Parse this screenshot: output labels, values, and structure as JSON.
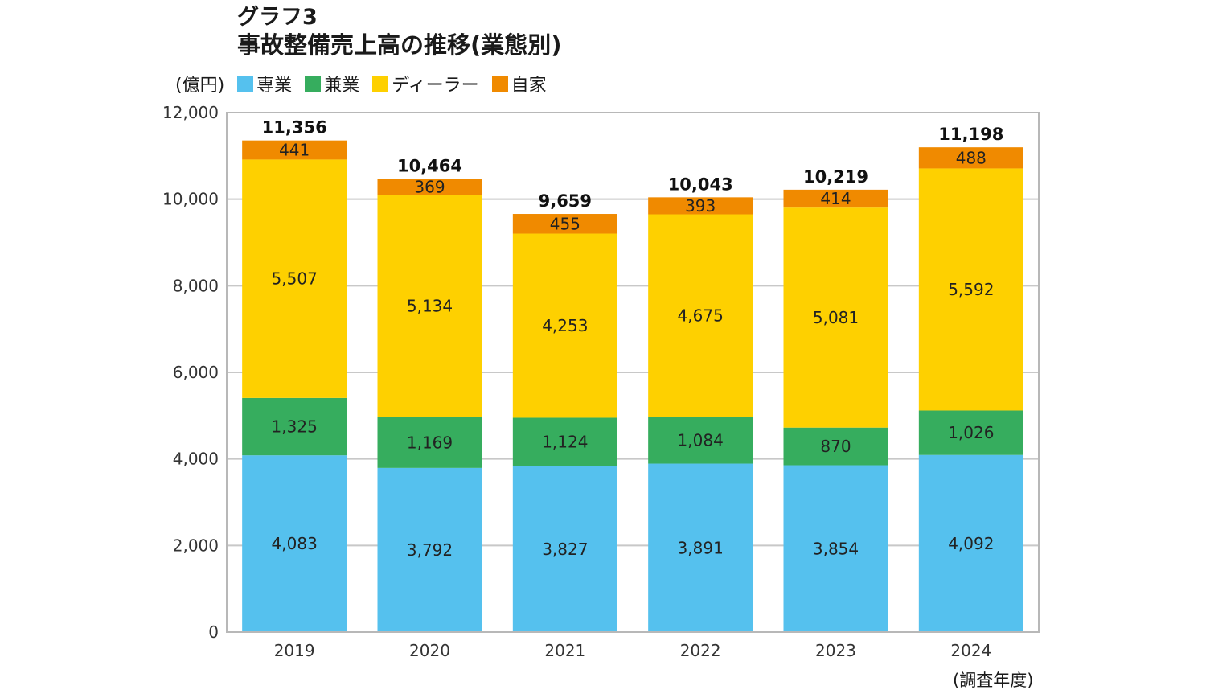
{
  "title": {
    "line1": "グラフ3",
    "line2": "事故整備売上高の推移(業態別)"
  },
  "unit_label": "(億円)",
  "x_note": "(調査年度)",
  "chart_data": {
    "type": "bar",
    "stacked": true,
    "categories": [
      "2019",
      "2020",
      "2021",
      "2022",
      "2023",
      "2024"
    ],
    "series": [
      {
        "name": "専業",
        "color": "#55C1EE",
        "values": [
          4083,
          3792,
          3827,
          3891,
          3854,
          4092
        ]
      },
      {
        "name": "兼業",
        "color": "#36AD5E",
        "values": [
          1325,
          1169,
          1124,
          1084,
          870,
          1026
        ]
      },
      {
        "name": "ディーラー",
        "color": "#FED000",
        "values": [
          5507,
          5134,
          4253,
          4675,
          5081,
          5592
        ]
      },
      {
        "name": "自家",
        "color": "#F08A00",
        "values": [
          441,
          369,
          455,
          393,
          414,
          488
        ]
      }
    ],
    "series_labels": [
      [
        "4,083",
        "3,792",
        "3,827",
        "3,891",
        "3,854",
        "4,092"
      ],
      [
        "1,325",
        "1,169",
        "1,124",
        "1,084",
        "870",
        "1,026"
      ],
      [
        "5,507",
        "5,134",
        "4,253",
        "4,675",
        "5,081",
        "5,592"
      ],
      [
        "441",
        "369",
        "455",
        "393",
        "414",
        "488"
      ]
    ],
    "totals": [
      11356,
      10464,
      9659,
      10043,
      10219,
      11198
    ],
    "total_labels": [
      "11,356",
      "10,464",
      "9,659",
      "10,043",
      "10,219",
      "11,198"
    ],
    "ylim": [
      0,
      12000
    ],
    "yticks": [
      0,
      2000,
      4000,
      6000,
      8000,
      10000,
      12000
    ],
    "ytick_labels": [
      "0",
      "2,000",
      "4,000",
      "6,000",
      "8,000",
      "10,000",
      "12,000"
    ],
    "grid": true,
    "legend_position": "top-left",
    "grid_color": "#C8C8C8",
    "frame_color": "#B8B8B8"
  }
}
